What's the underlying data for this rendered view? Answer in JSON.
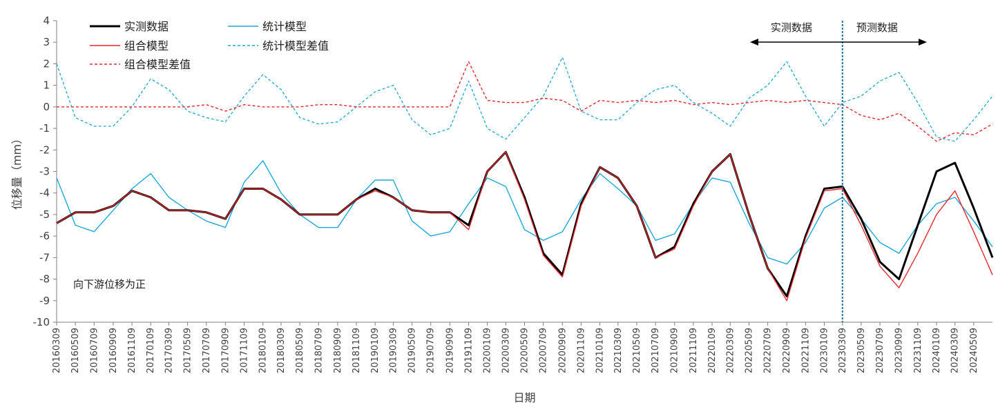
{
  "chart_data": {
    "type": "line",
    "title": "",
    "xlabel": "日期",
    "ylabel": "位移量（mm）",
    "ylim": [
      -10,
      4
    ],
    "yticks": [
      4,
      3,
      2,
      1,
      0,
      -1,
      -2,
      -3,
      -4,
      -5,
      -6,
      -7,
      -8,
      -9,
      -10
    ],
    "x_tick_labels": [
      "20160309",
      "20160509",
      "20160709",
      "20160909",
      "20161109",
      "20170109",
      "20170309",
      "20170509",
      "20170709",
      "20170909",
      "20171109",
      "20180109",
      "20180309",
      "20180509",
      "20180709",
      "20180909",
      "20181109",
      "20190109",
      "20190309",
      "20190509",
      "20190709",
      "20190909",
      "20191109",
      "20200109",
      "20200309",
      "20200509",
      "20200709",
      "20200909",
      "20201109",
      "20210109",
      "20210309",
      "20210509",
      "20210709",
      "20210909",
      "20211109",
      "20220109",
      "20220309",
      "20220509",
      "20220709",
      "20220909",
      "20221109",
      "20230109",
      "20230309",
      "20230509",
      "20230709",
      "20230909",
      "20231109",
      "20240109",
      "20240309",
      "20240509"
    ],
    "x_range": [
      "20160309",
      "20240709"
    ],
    "grid": false,
    "legend": "top-left",
    "series": [
      {
        "name": "实测数据",
        "color": "#000000",
        "style": "solid",
        "x": [
          "20160309",
          "20160509",
          "20160709",
          "20160909",
          "20161109",
          "20170109",
          "20170309",
          "20170509",
          "20170709",
          "20170909",
          "20171109",
          "20180109",
          "20180309",
          "20180509",
          "20180709",
          "20180909",
          "20181109",
          "20190109",
          "20190309",
          "20190509",
          "20190709",
          "20190909",
          "20191109",
          "20200109",
          "20200309",
          "20200509",
          "20200709",
          "20200909",
          "20201109",
          "20210109",
          "20210309",
          "20210509",
          "20210709",
          "20210909",
          "20211109",
          "20220109",
          "20220309",
          "20220509",
          "20220709",
          "20220909",
          "20221109",
          "20230109",
          "20230309",
          "20230509",
          "20230709",
          "20230909",
          "20231109",
          "20240109",
          "20240309",
          "20240509",
          "20240709"
        ],
        "values": [
          -5.4,
          -4.9,
          -4.9,
          -4.6,
          -3.9,
          -4.2,
          -4.8,
          -4.8,
          -4.9,
          -5.2,
          -3.8,
          -3.8,
          -4.3,
          -5.0,
          -5.0,
          -5.0,
          -4.3,
          -3.8,
          -4.2,
          -4.8,
          -4.9,
          -4.9,
          -5.5,
          -3.0,
          -2.1,
          -4.2,
          -6.8,
          -7.8,
          -4.5,
          -2.8,
          -3.3,
          -4.6,
          -7.0,
          -6.5,
          -4.5,
          -3.0,
          -2.2,
          -5.0,
          -7.5,
          -8.8,
          -6.0,
          -3.8,
          -3.7,
          -5.2,
          -7.2,
          -8.0,
          -5.5,
          -3.0,
          -2.6,
          -4.7,
          -7.0
        ]
      },
      {
        "name": "组合模型",
        "color": "#e8262a",
        "style": "solid",
        "x": [
          "20160309",
          "20160509",
          "20160709",
          "20160909",
          "20161109",
          "20170109",
          "20170309",
          "20170509",
          "20170709",
          "20170909",
          "20171109",
          "20180109",
          "20180309",
          "20180509",
          "20180709",
          "20180909",
          "20181109",
          "20190109",
          "20190309",
          "20190509",
          "20190709",
          "20190909",
          "20191109",
          "20200109",
          "20200309",
          "20200509",
          "20200709",
          "20200909",
          "20201109",
          "20210109",
          "20210309",
          "20210509",
          "20210709",
          "20210909",
          "20211109",
          "20220109",
          "20220309",
          "20220509",
          "20220709",
          "20220909",
          "20221109",
          "20230109",
          "20230309",
          "20230509",
          "20230709",
          "20230909",
          "20231109",
          "20240109",
          "20240309",
          "20240509",
          "20240709"
        ],
        "values": [
          -5.4,
          -4.9,
          -4.9,
          -4.6,
          -3.9,
          -4.2,
          -4.8,
          -4.8,
          -4.9,
          -5.2,
          -3.8,
          -3.8,
          -4.3,
          -5.0,
          -5.0,
          -5.0,
          -4.3,
          -3.9,
          -4.2,
          -4.8,
          -4.9,
          -4.9,
          -5.7,
          -3.0,
          -2.1,
          -4.3,
          -6.9,
          -7.9,
          -4.6,
          -2.8,
          -3.3,
          -4.6,
          -7.0,
          -6.6,
          -4.6,
          -3.0,
          -2.2,
          -5.0,
          -7.5,
          -9.0,
          -6.1,
          -3.9,
          -3.8,
          -5.5,
          -7.4,
          -8.4,
          -6.8,
          -5.0,
          -3.9,
          -5.8,
          -7.8
        ]
      },
      {
        "name": "统计模型",
        "color": "#1aa7dc",
        "style": "solid",
        "x": [
          "20160309",
          "20160509",
          "20160709",
          "20160909",
          "20161109",
          "20170109",
          "20170309",
          "20170509",
          "20170709",
          "20170909",
          "20171109",
          "20180109",
          "20180309",
          "20180509",
          "20180709",
          "20180909",
          "20181109",
          "20190109",
          "20190309",
          "20190509",
          "20190709",
          "20190909",
          "20191109",
          "20200109",
          "20200309",
          "20200509",
          "20200709",
          "20200909",
          "20201109",
          "20210109",
          "20210309",
          "20210509",
          "20210709",
          "20210909",
          "20211109",
          "20220109",
          "20220309",
          "20220509",
          "20220709",
          "20220909",
          "20221109",
          "20230109",
          "20230309",
          "20230509",
          "20230709",
          "20230909",
          "20231109",
          "20240109",
          "20240309",
          "20240509",
          "20240709"
        ],
        "values": [
          -3.3,
          -5.5,
          -5.8,
          -4.8,
          -3.8,
          -3.1,
          -4.2,
          -4.8,
          -5.3,
          -5.6,
          -3.5,
          -2.5,
          -4.0,
          -5.0,
          -5.6,
          -5.6,
          -4.3,
          -3.4,
          -3.4,
          -5.3,
          -6.0,
          -5.8,
          -4.5,
          -3.3,
          -3.7,
          -5.7,
          -6.2,
          -5.8,
          -4.3,
          -3.1,
          -3.8,
          -4.6,
          -6.2,
          -5.9,
          -4.5,
          -3.3,
          -3.5,
          -5.4,
          -7.0,
          -7.3,
          -6.3,
          -4.7,
          -4.2,
          -5.2,
          -6.3,
          -6.8,
          -5.5,
          -4.5,
          -4.2,
          -5.3,
          -6.5
        ]
      },
      {
        "name": "组合模型差值",
        "color": "#e8262a",
        "style": "dashed",
        "x": [
          "20160309",
          "20160509",
          "20160709",
          "20160909",
          "20161109",
          "20170109",
          "20170309",
          "20170509",
          "20170709",
          "20170909",
          "20171109",
          "20180109",
          "20180309",
          "20180509",
          "20180709",
          "20180909",
          "20181109",
          "20190109",
          "20190309",
          "20190509",
          "20190709",
          "20190909",
          "20191109",
          "20200109",
          "20200309",
          "20200509",
          "20200709",
          "20200909",
          "20201109",
          "20210109",
          "20210309",
          "20210509",
          "20210709",
          "20210909",
          "20211109",
          "20220109",
          "20220309",
          "20220509",
          "20220709",
          "20220909",
          "20221109",
          "20230109",
          "20230309",
          "20230509",
          "20230709",
          "20230909",
          "20231109",
          "20240109",
          "20240309",
          "20240509",
          "20240709"
        ],
        "values": [
          0,
          0,
          0,
          0,
          0,
          0,
          0,
          0,
          0.1,
          -0.2,
          0.1,
          0,
          0,
          0,
          0.1,
          0.1,
          0,
          0,
          0,
          0,
          0,
          0,
          2.1,
          0.3,
          0.2,
          0.2,
          0.4,
          0.3,
          -0.2,
          0.3,
          0.2,
          0.3,
          0.2,
          0.3,
          0.1,
          0.2,
          0.1,
          0.2,
          0.3,
          0.2,
          0.3,
          0.2,
          0.1,
          -0.4,
          -0.6,
          -0.3,
          -0.9,
          -1.6,
          -1.2,
          -1.3,
          -0.8
        ]
      },
      {
        "name": "统计模型差值",
        "color": "#1aa7dc",
        "style": "dashed",
        "x": [
          "20160309",
          "20160509",
          "20160709",
          "20160909",
          "20161109",
          "20170109",
          "20170309",
          "20170509",
          "20170709",
          "20170909",
          "20171109",
          "20180109",
          "20180309",
          "20180509",
          "20180709",
          "20180909",
          "20181109",
          "20190109",
          "20190309",
          "20190509",
          "20190709",
          "20190909",
          "20191109",
          "20200109",
          "20200309",
          "20200509",
          "20200709",
          "20200909",
          "20201109",
          "20210109",
          "20210309",
          "20210509",
          "20210709",
          "20210909",
          "20211109",
          "20220109",
          "20220309",
          "20220509",
          "20220709",
          "20220909",
          "20221109",
          "20230109",
          "20230309",
          "20230509",
          "20230709",
          "20230909",
          "20231109",
          "20240109",
          "20240309",
          "20240509",
          "20240709"
        ],
        "values": [
          2.0,
          -0.5,
          -0.9,
          -0.9,
          0,
          1.3,
          0.8,
          -0.2,
          -0.5,
          -0.7,
          0.5,
          1.5,
          0.8,
          -0.5,
          -0.8,
          -0.7,
          0,
          0.7,
          1.0,
          -0.6,
          -1.3,
          -1.0,
          1.2,
          -1.0,
          -1.5,
          -0.5,
          0.5,
          2.3,
          -0.2,
          -0.6,
          -0.6,
          0.2,
          0.8,
          1.0,
          0.2,
          -0.3,
          -0.9,
          0.4,
          1.0,
          2.1,
          0.5,
          -0.9,
          0.2,
          0.5,
          1.2,
          1.6,
          0.2,
          -1.4,
          -1.6,
          -0.6,
          0.5
        ]
      }
    ],
    "annotations": {
      "split_date": "20230309",
      "left_label": "实测数据",
      "right_label": "预测数据",
      "note": "向下游位移为正"
    }
  }
}
